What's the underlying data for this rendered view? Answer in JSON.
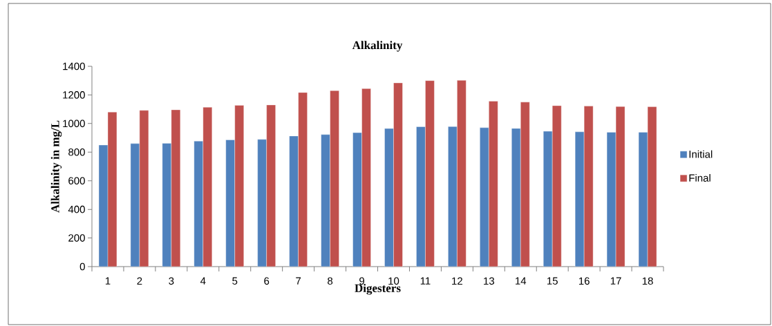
{
  "chart_data": {
    "type": "bar",
    "title": "Alkalinity",
    "xlabel": "Digesters",
    "ylabel": "Alkalinity in mg/L",
    "categories": [
      "1",
      "2",
      "3",
      "4",
      "5",
      "6",
      "7",
      "8",
      "9",
      "10",
      "11",
      "12",
      "13",
      "14",
      "15",
      "16",
      "17",
      "18"
    ],
    "series": [
      {
        "name": "Initial",
        "color": "#4f81bd",
        "values": [
          850,
          860,
          862,
          877,
          886,
          889,
          913,
          923,
          936,
          965,
          978,
          979,
          971,
          966,
          946,
          942,
          939,
          939
        ]
      },
      {
        "name": "Final",
        "color": "#c0504d",
        "values": [
          1080,
          1092,
          1096,
          1114,
          1127,
          1130,
          1217,
          1230,
          1244,
          1284,
          1300,
          1302,
          1156,
          1150,
          1125,
          1122,
          1119,
          1117
        ]
      }
    ],
    "ylim": [
      0,
      1400
    ],
    "yticks": [
      0,
      200,
      400,
      600,
      800,
      1000,
      1200,
      1400
    ],
    "grid": false,
    "legend": "right"
  }
}
